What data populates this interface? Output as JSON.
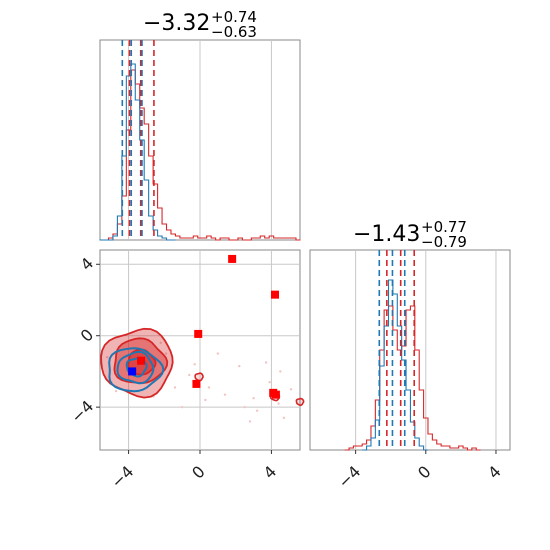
{
  "chart_data": [
    {
      "type": "histogram",
      "panel": "top-left marginal",
      "title": {
        "median": "−3.32",
        "plus": "+0.74",
        "minus": "−0.63"
      },
      "xlim": [
        -5.6,
        5.6
      ],
      "grid": true,
      "series": [
        {
          "color": "#d62728",
          "bins_x": [
            -5.5,
            -5.25,
            -5,
            -4.75,
            -4.5,
            -4.25,
            -4,
            -3.75,
            -3.5,
            -3.25,
            -3,
            -2.75,
            -2.5,
            -2.25,
            -2,
            -1.75,
            -1.5,
            -1.25,
            -1,
            -0.75,
            -0.5,
            -0.25,
            0,
            0.25,
            0.5,
            0.75,
            1,
            1.25,
            1.5,
            1.75,
            2,
            2.25,
            2.5,
            2.75,
            3,
            3.25,
            3.5,
            3.75,
            4,
            4.25,
            4.5,
            4.75,
            5,
            5.25,
            5.5
          ],
          "density": [
            0,
            0,
            0.01,
            0.03,
            0.08,
            0.22,
            0.55,
            0.85,
            0.78,
            0.66,
            0.58,
            0.42,
            0.28,
            0.16,
            0.08,
            0.05,
            0.03,
            0.02,
            0.01,
            0.01,
            0.01,
            0.02,
            0.01,
            0.01,
            0.02,
            0.01,
            0,
            0.01,
            0.01,
            0,
            0,
            0.01,
            0,
            0,
            0.01,
            0.01,
            0.02,
            0.01,
            0.02,
            0.01,
            0.01,
            0.01,
            0.01,
            0.01,
            0
          ],
          "quantiles": [
            -3.95,
            -3.32,
            -2.58
          ]
        },
        {
          "color": "#1f77b4",
          "bins_x": [
            -5.5,
            -5.25,
            -5,
            -4.75,
            -4.5,
            -4.25,
            -4,
            -3.75,
            -3.5,
            -3.25,
            -3,
            -2.75,
            -2.5,
            -2.25,
            -2,
            -1.75,
            -1.5
          ],
          "density": [
            0,
            0,
            0,
            0.02,
            0.12,
            0.42,
            0.82,
            0.88,
            0.7,
            0.5,
            0.3,
            0.12,
            0.05,
            0.02,
            0.01,
            0,
            0
          ],
          "quantiles": [
            -4.35,
            -3.85,
            -3.25
          ]
        }
      ]
    },
    {
      "type": "histogram",
      "panel": "bottom-right marginal",
      "title": {
        "median": "−1.43",
        "plus": "+0.77",
        "minus": "−0.79"
      },
      "xlim": [
        -6.6,
        4.8
      ],
      "xticks": [
        "−4",
        "0",
        "4"
      ],
      "grid": true,
      "series": [
        {
          "color": "#d62728",
          "bins_x": [
            -4.5,
            -4.25,
            -4,
            -3.75,
            -3.5,
            -3.25,
            -3,
            -2.75,
            -2.5,
            -2.25,
            -2,
            -1.75,
            -1.5,
            -1.25,
            -1,
            -0.75,
            -0.5,
            -0.25,
            0,
            0.25,
            0.5,
            0.75,
            1,
            1.25,
            1.5,
            1.75,
            2,
            2.25,
            2.5,
            2.75,
            3
          ],
          "density": [
            0,
            0.01,
            0.02,
            0.02,
            0.03,
            0.05,
            0.12,
            0.25,
            0.5,
            0.7,
            0.72,
            0.6,
            0.5,
            0.52,
            0.7,
            0.72,
            0.5,
            0.3,
            0.16,
            0.08,
            0.05,
            0.03,
            0.02,
            0.02,
            0.01,
            0.01,
            0.02,
            0.01,
            0,
            0.01,
            0
          ],
          "quantiles": [
            -2.22,
            -1.43,
            -0.66
          ]
        },
        {
          "color": "#1f77b4",
          "bins_x": [
            -3.5,
            -3.25,
            -3,
            -2.75,
            -2.5,
            -2.25,
            -2,
            -1.75,
            -1.5,
            -1.25,
            -1,
            -0.75,
            -0.5,
            -0.25,
            0
          ],
          "density": [
            0,
            0.02,
            0.06,
            0.15,
            0.42,
            0.62,
            0.85,
            0.78,
            0.62,
            0.45,
            0.3,
            0.14,
            0.06,
            0.02,
            0
          ],
          "quantiles": [
            -2.65,
            -1.9,
            -1.2
          ]
        }
      ]
    },
    {
      "type": "scatter",
      "panel": "bottom-left joint",
      "xlim": [
        -5.6,
        5.6
      ],
      "ylim": [
        -6.4,
        4.8
      ],
      "xticks": [
        "−4",
        "0",
        "4"
      ],
      "yticks": [
        "4",
        "0",
        "−4"
      ],
      "grid": true,
      "red_points": [
        [
          1.8,
          4.3
        ],
        [
          4.2,
          2.3
        ],
        [
          -0.1,
          0.1
        ],
        [
          -3.3,
          -1.4
        ],
        [
          -0.2,
          -2.7
        ],
        [
          4.1,
          -3.2
        ],
        [
          4.25,
          -3.3
        ]
      ],
      "blue_points": [
        [
          -3.8,
          -2.0
        ]
      ],
      "contours": [
        {
          "color": "#d62728",
          "level": "outer",
          "center": [
            -3.5,
            -1.5
          ],
          "rx": 2.0,
          "ry": 1.85
        },
        {
          "color": "#d62728",
          "level": "middle",
          "center": [
            -3.4,
            -1.45
          ],
          "rx": 1.45,
          "ry": 1.25
        },
        {
          "color": "#d62728",
          "level": "inner",
          "center": [
            -3.3,
            -1.5
          ],
          "rx": 0.75,
          "ry": 0.7
        },
        {
          "color": "#1f77b4",
          "level": "outer",
          "center": [
            -3.7,
            -1.9
          ],
          "rx": 1.5,
          "ry": 1.2
        },
        {
          "color": "#1f77b4",
          "level": "middle",
          "center": [
            -3.6,
            -1.8
          ],
          "rx": 1.0,
          "ry": 0.85
        },
        {
          "color": "#1f77b4",
          "level": "inner",
          "center": [
            -3.55,
            -1.75
          ],
          "rx": 0.55,
          "ry": 0.5
        }
      ],
      "outlier_contours": [
        {
          "color": "#d62728",
          "center": [
            4.2,
            -3.4
          ],
          "rx": 0.25,
          "ry": 0.22
        },
        {
          "color": "#d62728",
          "center": [
            -0.05,
            -2.3
          ],
          "rx": 0.22,
          "ry": 0.2
        },
        {
          "color": "#d62728",
          "center": [
            5.6,
            -3.7
          ],
          "rx": 0.2,
          "ry": 0.18
        }
      ]
    }
  ]
}
